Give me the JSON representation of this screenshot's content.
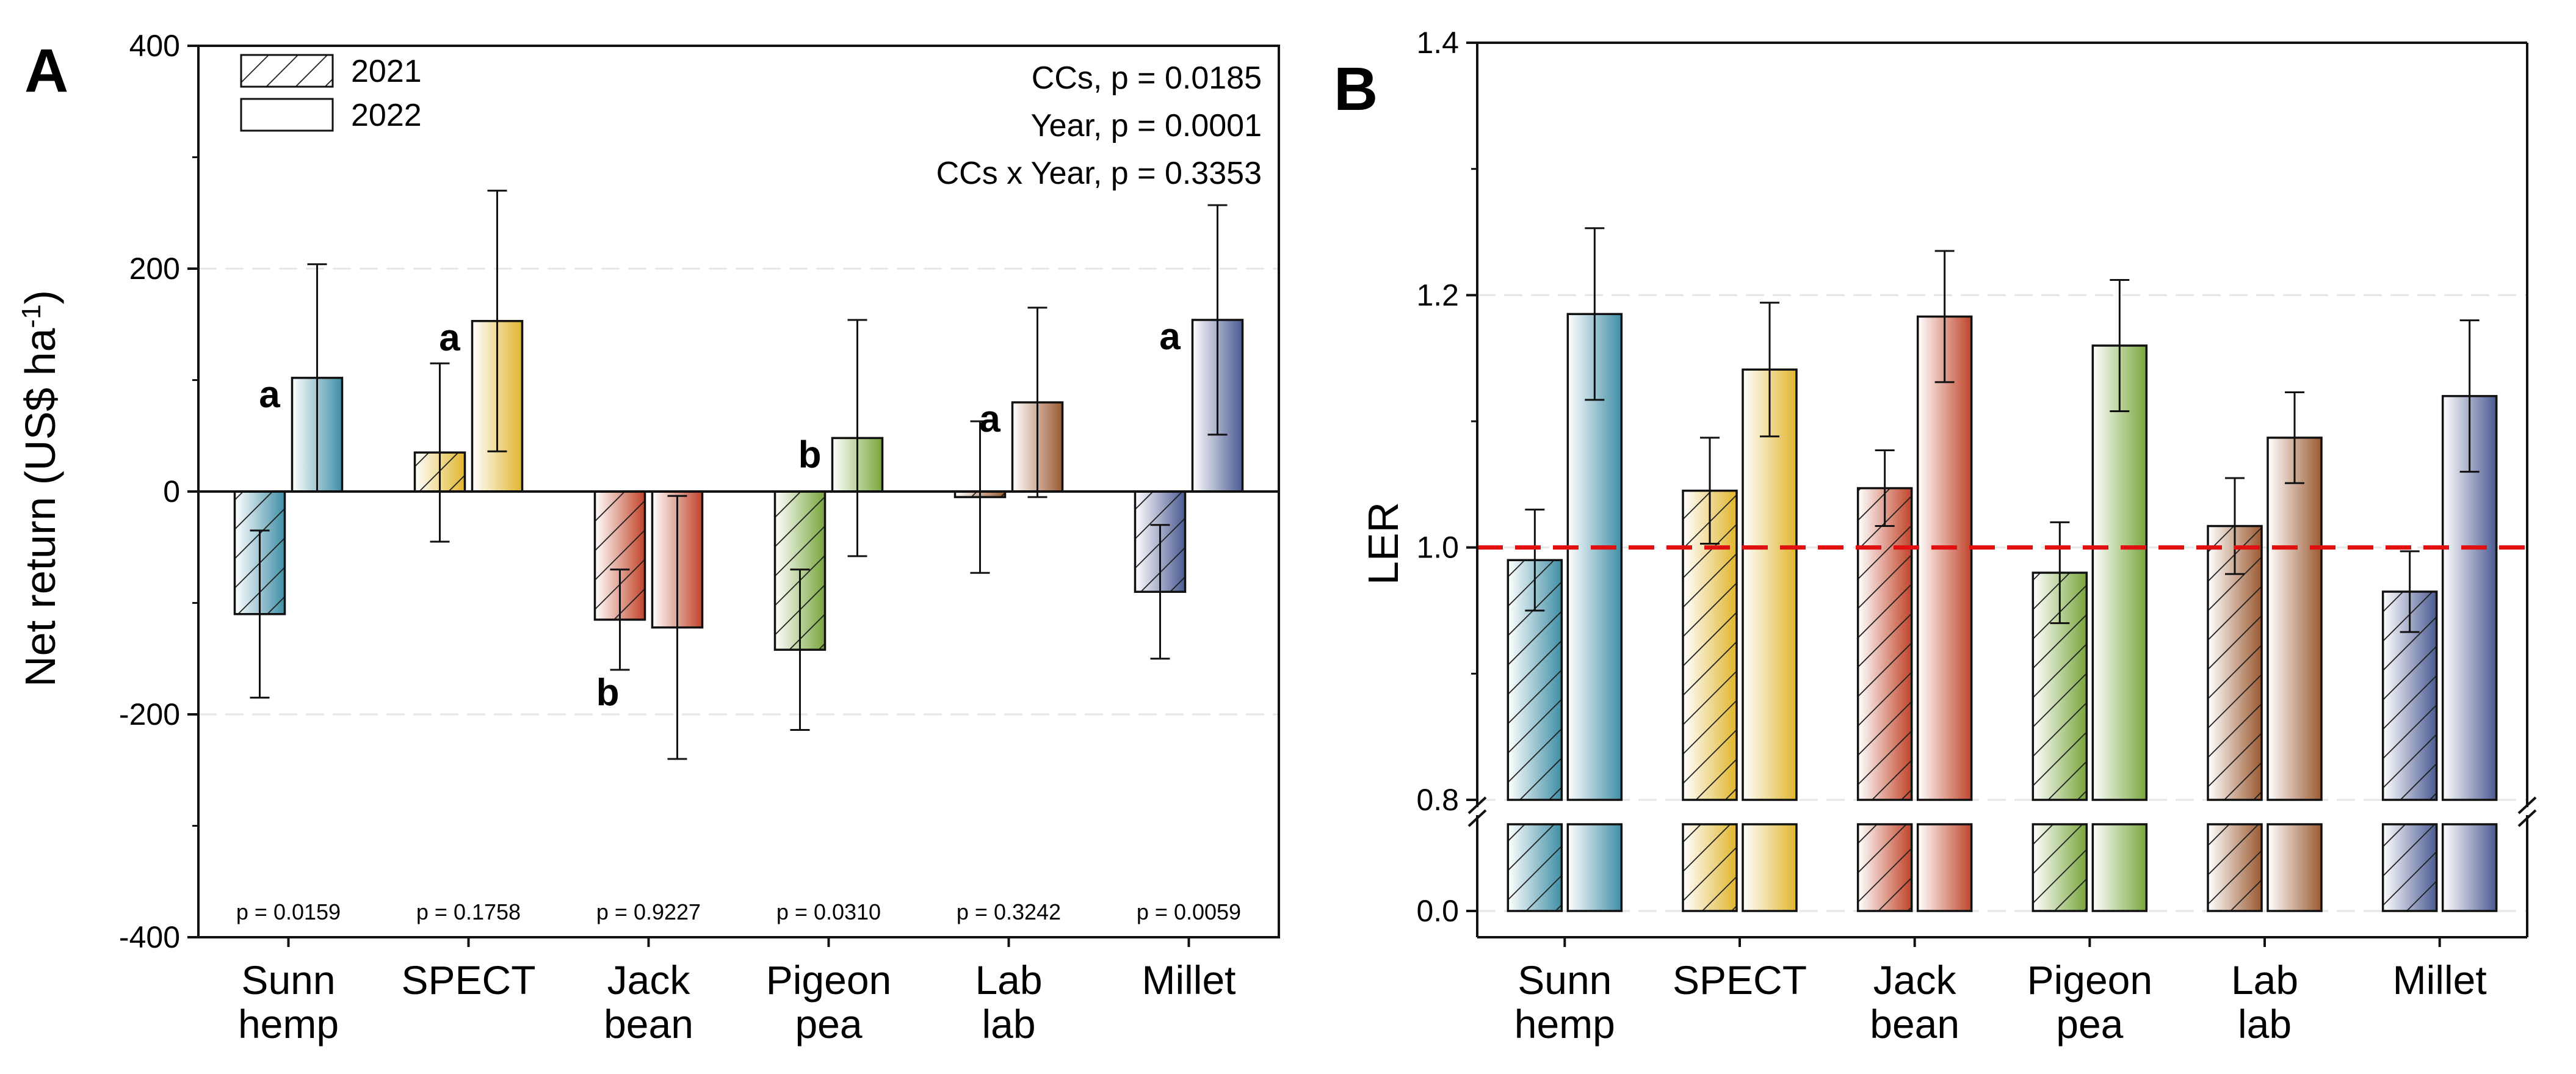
{
  "chart_data": [
    {
      "panel": "A",
      "type": "bar",
      "ylabel": "Net return (US$ ha",
      "ylabel_sup": "-1",
      "ylabel_close": ")",
      "ylim": [
        -400,
        400
      ],
      "yticks": [
        -400,
        -200,
        0,
        200,
        400
      ],
      "categories": [
        [
          "Sunn",
          "hemp"
        ],
        [
          "SPECT"
        ],
        [
          "Jack",
          "bean"
        ],
        [
          "Pigeon",
          "pea"
        ],
        [
          "Lab",
          "lab"
        ],
        [
          "Millet"
        ]
      ],
      "legend": [
        {
          "name": "2021",
          "style": "hatched"
        },
        {
          "name": "2022",
          "style": "plain"
        }
      ],
      "stats": [
        "CCs, p = 0.0185",
        "Year, p = 0.0001",
        "CCs x Year, p = 0.3353"
      ],
      "series": [
        {
          "name": "2021",
          "values": [
            -110,
            35,
            -115,
            -142,
            -5,
            -90
          ],
          "errors": [
            75,
            80,
            45,
            72,
            68,
            60
          ]
        },
        {
          "name": "2022",
          "values": [
            102,
            153,
            -122,
            48,
            80,
            154
          ],
          "errors": [
            102,
            117,
            118,
            106,
            85,
            103
          ]
        }
      ],
      "letters": [
        {
          "index": 0,
          "series": 1,
          "text": "a"
        },
        {
          "index": 1,
          "series": 1,
          "text": "a"
        },
        {
          "index": 2,
          "series": 0,
          "text": "b"
        },
        {
          "index": 3,
          "series": 1,
          "text": "b"
        },
        {
          "index": 4,
          "series": 1,
          "text": "a"
        },
        {
          "index": 5,
          "series": 1,
          "text": "a"
        }
      ],
      "pvalues": [
        "p = 0.0159",
        "p = 0.1758",
        "p = 0.9227",
        "p = 0.0310",
        "p = 0.3242",
        "p = 0.0059"
      ],
      "colors": [
        "#3f8ea6",
        "#e0b52d",
        "#c0442a",
        "#78a53c",
        "#9a5a32",
        "#4a5a92"
      ]
    },
    {
      "panel": "B",
      "type": "bar",
      "ylabel": "LER",
      "ylim": [
        0.8,
        1.4
      ],
      "yticks": [
        0.8,
        1.0,
        1.2,
        1.4
      ],
      "ytick_labels": [
        "0.8",
        "1.0",
        "1.2",
        "1.4"
      ],
      "broken_axis_label": "0.0",
      "reference_line": 1.0,
      "reference_color": "#e01010",
      "categories": [
        [
          "Sunn",
          "hemp"
        ],
        [
          "SPECT"
        ],
        [
          "Jack",
          "bean"
        ],
        [
          "Pigeon",
          "pea"
        ],
        [
          "Lab",
          "lab"
        ],
        [
          "Millet"
        ]
      ],
      "series": [
        {
          "name": "2021",
          "values": [
            0.99,
            1.045,
            1.047,
            0.98,
            1.017,
            0.965
          ],
          "errors": [
            0.04,
            0.042,
            0.03,
            0.04,
            0.038,
            0.032
          ]
        },
        {
          "name": "2022",
          "values": [
            1.185,
            1.141,
            1.183,
            1.16,
            1.087,
            1.12
          ],
          "errors": [
            0.068,
            0.053,
            0.052,
            0.052,
            0.036,
            0.06
          ]
        }
      ],
      "colors": [
        "#3f8ea6",
        "#e0b52d",
        "#c0442a",
        "#78a53c",
        "#9a5a32",
        "#4a5a92"
      ]
    }
  ]
}
